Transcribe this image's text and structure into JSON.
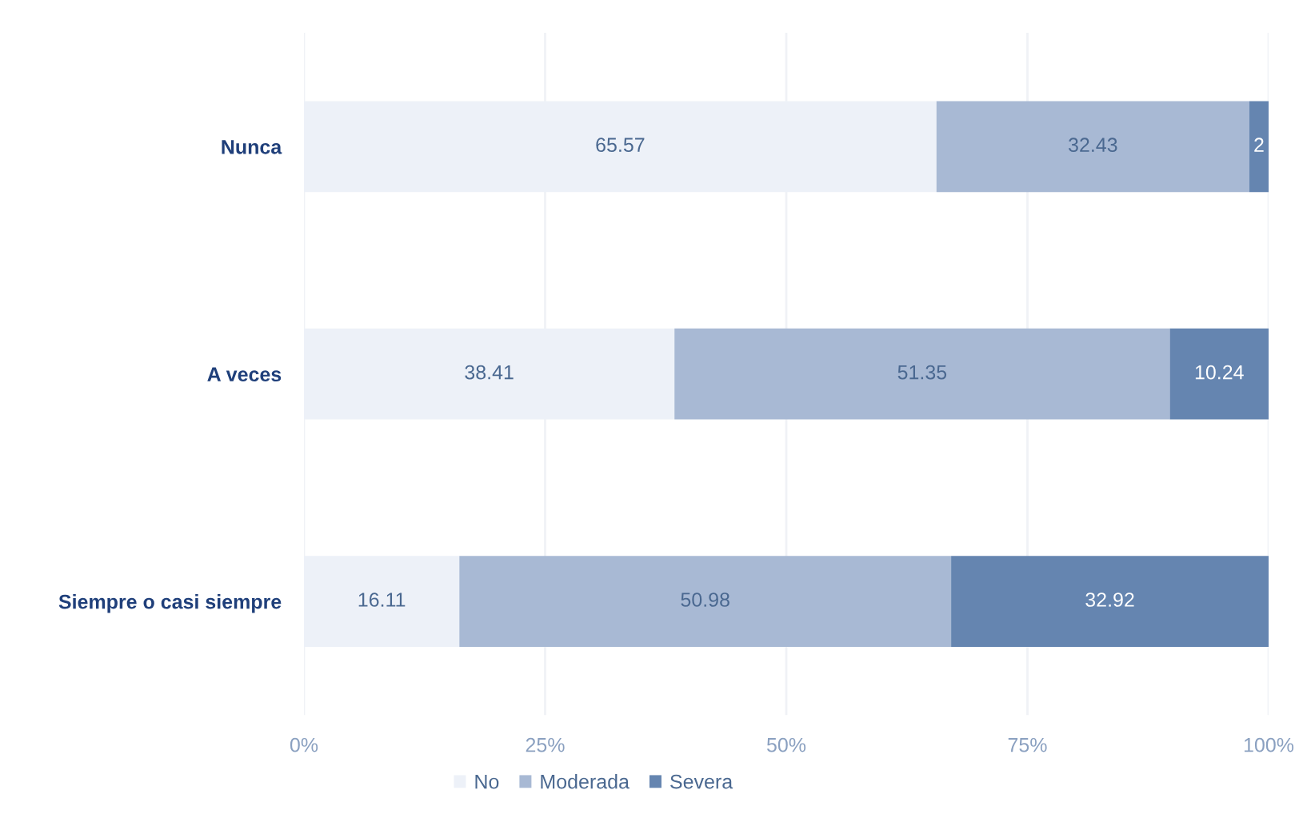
{
  "chart_data": {
    "type": "bar",
    "orientation": "horizontal",
    "stacked": true,
    "categories": [
      "Nunca",
      "A veces",
      "Siempre o casi siempre"
    ],
    "series": [
      {
        "name": "No",
        "color": "#edf1f8",
        "values": [
          65.57,
          38.41,
          16.11
        ]
      },
      {
        "name": "Moderada",
        "color": "#a8b9d4",
        "values": [
          32.43,
          51.35,
          50.98
        ]
      },
      {
        "name": "Severa",
        "color": "#6585b0",
        "values": [
          2,
          10.24,
          32.92
        ]
      }
    ],
    "data_labels": true,
    "xlim": [
      0,
      100
    ],
    "xticks": [
      {
        "value": 0,
        "label": "0%"
      },
      {
        "value": 25,
        "label": "25%"
      },
      {
        "value": 50,
        "label": "50%"
      },
      {
        "value": 75,
        "label": "75%"
      },
      {
        "value": 100,
        "label": "100%"
      }
    ],
    "grid": "x",
    "legend": "bottom"
  }
}
